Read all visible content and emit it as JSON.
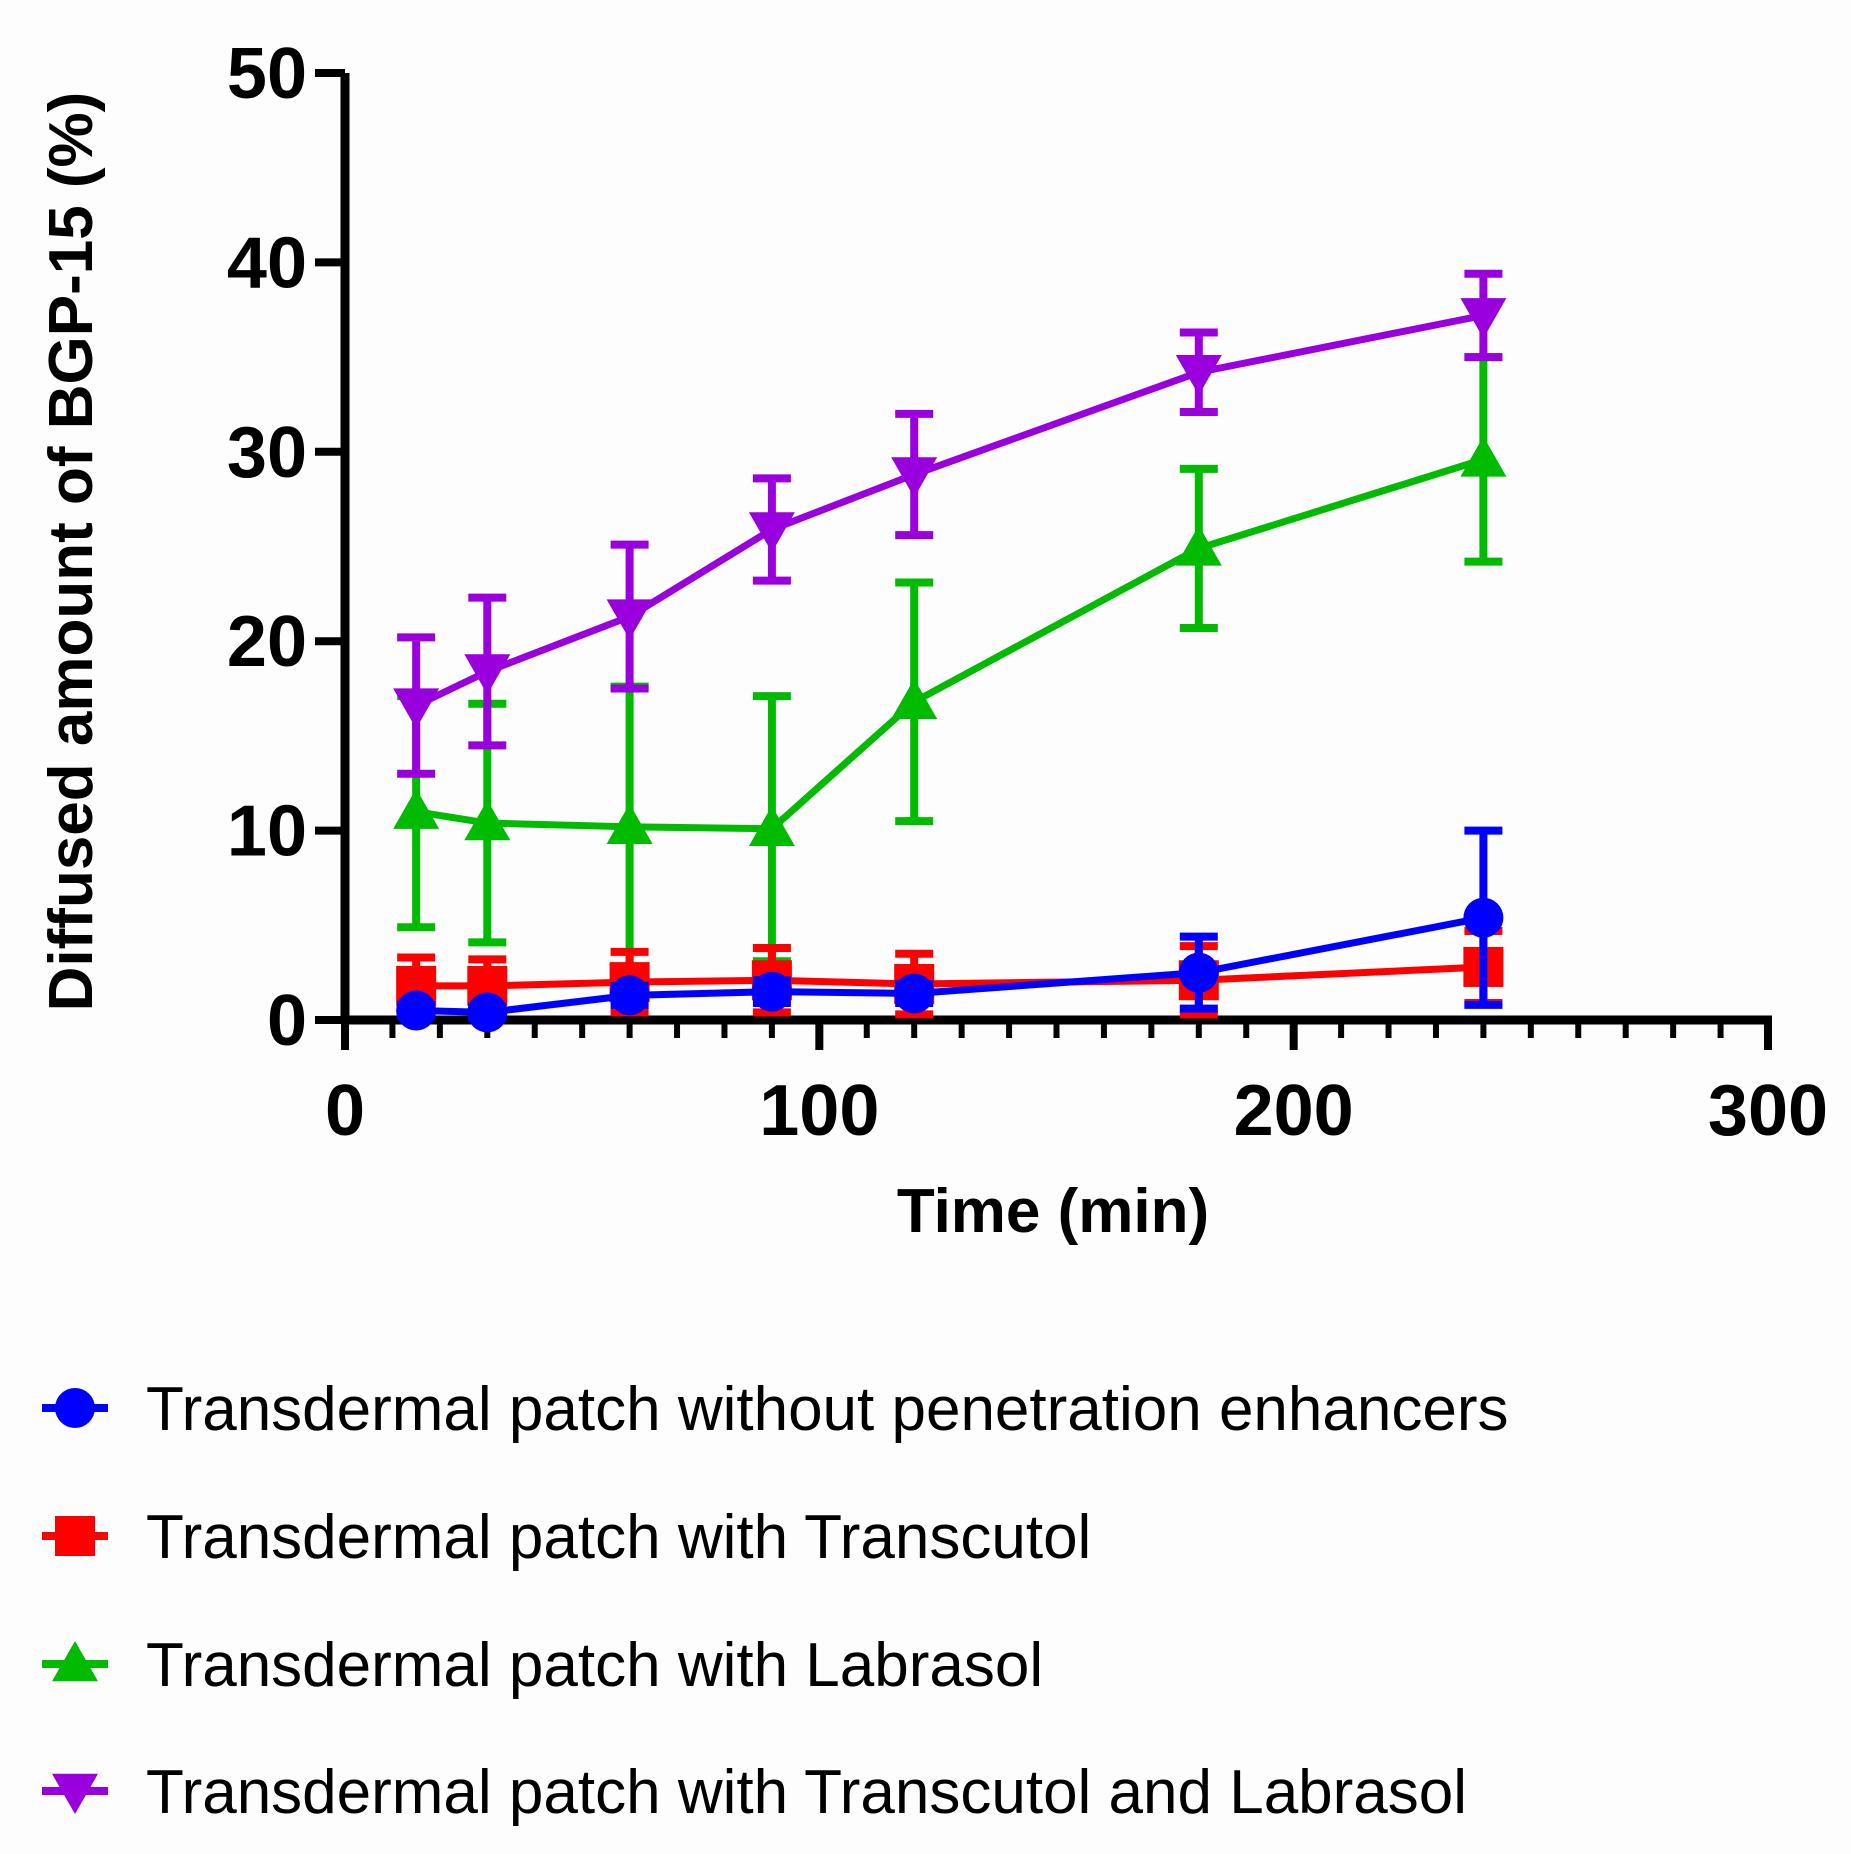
{
  "chart_data": {
    "type": "line",
    "title": "",
    "xlabel": "Time (min)",
    "ylabel": "Diffused amount of BGP-15 (%)",
    "xlim": [
      0,
      300
    ],
    "ylim": [
      0,
      50
    ],
    "xticks": [
      0,
      100,
      200,
      300
    ],
    "xtick_labels": [
      "0",
      "100",
      "200",
      "300"
    ],
    "yticks": [
      0,
      10,
      20,
      30,
      40,
      50
    ],
    "ytick_labels": [
      "0",
      "10",
      "20",
      "30",
      "40",
      "50"
    ],
    "grid": false,
    "legend_position": "bottom",
    "x": [
      15,
      30,
      60,
      90,
      120,
      180,
      240
    ],
    "series": [
      {
        "name": "Transdermal patch without penetration enhancers",
        "color": "#0000ff",
        "marker": "circle",
        "values": [
          0.5,
          0.4,
          1.3,
          1.5,
          1.4,
          2.5,
          5.4
        ],
        "error": [
          0.3,
          0.3,
          0.5,
          0.6,
          0.5,
          1.9,
          4.6
        ]
      },
      {
        "name": "Transdermal patch with Transcutol",
        "color": "#ff0000",
        "marker": "square",
        "values": [
          1.8,
          1.8,
          2.0,
          2.1,
          1.9,
          2.1,
          2.8
        ],
        "error": [
          1.5,
          1.4,
          1.6,
          1.7,
          1.6,
          1.8,
          1.9
        ]
      },
      {
        "name": "Transdermal patch with Labrasol",
        "color": "#00bb00",
        "marker": "triangle-up",
        "values": [
          11.0,
          10.4,
          10.2,
          10.1,
          16.8,
          24.9,
          29.6
        ],
        "error": [
          6.1,
          6.3,
          7.4,
          7.0,
          6.3,
          4.2,
          5.4
        ]
      },
      {
        "name": "Transdermal patch with Transcutol and Labrasol",
        "color": "#9900dd",
        "marker": "triangle-down",
        "values": [
          16.6,
          18.4,
          21.3,
          25.9,
          28.8,
          34.2,
          37.2
        ],
        "error": [
          3.6,
          3.9,
          3.8,
          2.7,
          3.2,
          2.1,
          2.2
        ]
      }
    ]
  }
}
